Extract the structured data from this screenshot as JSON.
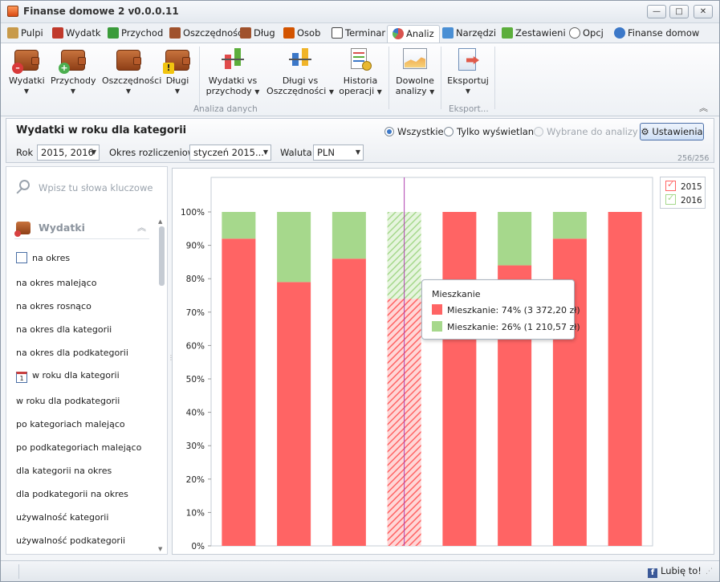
{
  "window": {
    "title": "Finanse domowe 2  v0.0.0.11",
    "controls": [
      "—",
      "□",
      "✕"
    ]
  },
  "tabs": [
    {
      "label": "Pulpi",
      "icon": "desktop-icon",
      "color": "#c89a4a"
    },
    {
      "label": "Wydatk",
      "icon": "wallet-minus-icon",
      "color": "#c0392b"
    },
    {
      "label": "Przychod",
      "icon": "plus-icon",
      "color": "#3a9b3a"
    },
    {
      "label": "Oszczędnośc",
      "icon": "piggy-wallet-icon",
      "color": "#a0522d"
    },
    {
      "label": "Dług",
      "icon": "debt-icon",
      "color": "#a0522d"
    },
    {
      "label": "Osob",
      "icon": "people-icon",
      "color": "#d35400"
    },
    {
      "label": "Terminar",
      "icon": "calendar-icon",
      "color": "#444444"
    },
    {
      "label": "Analiz",
      "icon": "pie-chart-icon",
      "color": "#d9534f"
    },
    {
      "label": "Narzędzi",
      "icon": "tools-icon",
      "color": "#4a8fd4"
    },
    {
      "label": "Zestawieni",
      "icon": "line-chart-icon",
      "color": "#5cae3c"
    },
    {
      "label": "Opcj",
      "icon": "options-icon",
      "color": "#666666"
    },
    {
      "label": "Finanse domow",
      "icon": "info-icon",
      "color": "#3c78c8"
    }
  ],
  "ribbon": {
    "buttons": [
      {
        "label": "Wydatki",
        "icon": "wallet-expense-icon"
      },
      {
        "label": "Przychody",
        "icon": "wallet-income-icon"
      },
      {
        "label": "Oszczędności",
        "icon": "wallet-savings-icon"
      },
      {
        "label": "Długi",
        "icon": "wallet-debt-icon"
      },
      {
        "label": "Wydatki vs przychody",
        "line1": "Wydatki vs",
        "line2": "przychody",
        "icon": "compare-bars-icon"
      },
      {
        "label": "Długi vs Oszczędności",
        "line1": "Długi vs",
        "line2": "Oszczędności",
        "icon": "compare-bars-icon"
      },
      {
        "label": "Historia operacji",
        "line1": "Historia",
        "line2": "operacji",
        "icon": "history-icon"
      },
      {
        "label": "Dowolne analizy",
        "line1": "Dowolne",
        "line2": "analizy",
        "icon": "area-chart-icon"
      },
      {
        "label": "Eksportuj",
        "icon": "export-icon"
      }
    ],
    "group_labels": [
      "Analiza danych",
      "Eksport..."
    ]
  },
  "subheader": {
    "title": "Wydatki w roku dla kategorii",
    "radios": [
      {
        "label": "Wszystkie",
        "selected": true,
        "disabled": false
      },
      {
        "label": "Tylko wyświetlane",
        "selected": false,
        "disabled": false
      },
      {
        "label": "Wybrane do analizy",
        "selected": false,
        "disabled": true
      }
    ],
    "settings_label": "Ustawienia",
    "filters": {
      "rok_label": "Rok",
      "rok_value": "2015, 2016",
      "okres_label": "Okres rozliczeniowy",
      "okres_value": "styczeń 2015...",
      "waluta_label": "Waluta",
      "waluta_value": "PLN"
    },
    "counter": "256/256"
  },
  "sidebar": {
    "search_placeholder": "Wpisz tu słowa kluczowe",
    "section_title": "Wydatki",
    "items": [
      {
        "label": "na okres",
        "icon": "calendar-icon"
      },
      {
        "label": "na okres malejąco",
        "icon": ""
      },
      {
        "label": "na okres rosnąco",
        "icon": ""
      },
      {
        "label": "na okres dla kategorii",
        "icon": ""
      },
      {
        "label": "na okres dla podkategorii",
        "icon": ""
      },
      {
        "label": "w roku dla kategorii",
        "icon": "calendar-day-icon"
      },
      {
        "label": "w roku dla podkategorii",
        "icon": ""
      },
      {
        "label": "po kategoriach malejąco",
        "icon": ""
      },
      {
        "label": "po podkategoriach malejąco",
        "icon": ""
      },
      {
        "label": "dla kategorii na okres",
        "icon": ""
      },
      {
        "label": "dla podkategorii na okres",
        "icon": ""
      },
      {
        "label": "używalność kategorii",
        "icon": ""
      },
      {
        "label": "używalność podkategorii",
        "icon": ""
      }
    ]
  },
  "chart_data": {
    "type": "bar",
    "stacked": "100%",
    "categories": [
      "",
      "",
      "",
      "",
      "",
      "",
      "",
      ""
    ],
    "series": [
      {
        "name": "2015",
        "color": "#ff6464",
        "values": [
          92,
          79,
          86,
          74,
          100,
          84,
          92,
          100
        ]
      },
      {
        "name": "2016",
        "color": "#a6d88c",
        "values": [
          8,
          21,
          14,
          26,
          0,
          16,
          8,
          0
        ]
      }
    ],
    "highlighted_index": 3,
    "yticks": [
      "0%",
      "10%",
      "20%",
      "30%",
      "40%",
      "50%",
      "60%",
      "70%",
      "80%",
      "90%",
      "100%"
    ],
    "ylim": [
      0,
      100
    ],
    "legend": "top-right",
    "grid": false
  },
  "tooltip": {
    "title": "Mieszkanie",
    "rows": [
      {
        "text": "Mieszkanie: 74% (3 372,20 zł)",
        "color": "#ff6464"
      },
      {
        "text": "Mieszkanie: 26% (1 210,57 zł)",
        "color": "#a6d88c"
      }
    ]
  },
  "status": {
    "like_label": "Lubię to!"
  }
}
